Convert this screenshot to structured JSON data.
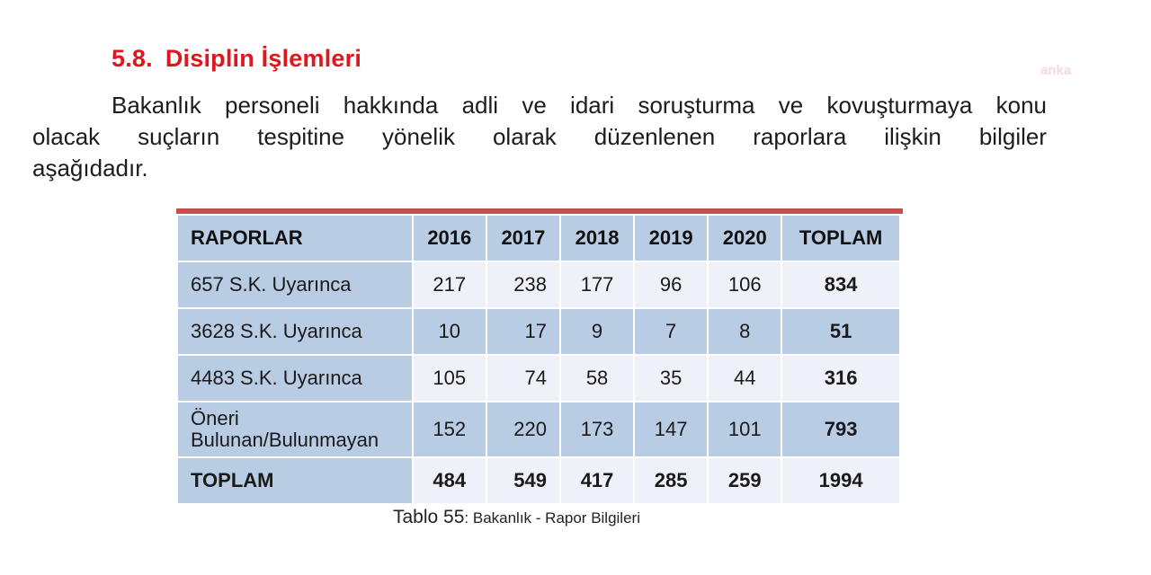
{
  "document": {
    "section_number": "5.8.",
    "section_title": "Disiplin İşlemleri",
    "watermark": "anka",
    "paragraph_lines": [
      "Bakanlık personeli hakkında adli ve idari soruşturma ve kovuşturmaya konu",
      "olacak suçların tespitine yönelik olarak düzenlenen raporlara ilişkin bilgiler",
      "aşağıdadır."
    ],
    "table": {
      "headers": [
        "RAPORLAR",
        "2016",
        "2017",
        "2018",
        "2019",
        "2020",
        "TOPLAM"
      ],
      "rows": [
        {
          "label": "657 S.K. Uyarınca",
          "values": [
            "217",
            "238",
            "177",
            "96",
            "106"
          ],
          "total": "834"
        },
        {
          "label": "3628 S.K. Uyarınca",
          "values": [
            "10",
            "17",
            "9",
            "7",
            "8"
          ],
          "total": "51"
        },
        {
          "label": "4483 S.K. Uyarınca",
          "values": [
            "105",
            "74",
            "58",
            "35",
            "44"
          ],
          "total": "316"
        },
        {
          "label_line1": "Öneri",
          "label_line2": "Bulunan/Bulunmayan",
          "values": [
            "152",
            "220",
            "173",
            "147",
            "101"
          ],
          "total": "793"
        },
        {
          "label": "TOPLAM",
          "values": [
            "484",
            "549",
            "417",
            "285",
            "259"
          ],
          "total": "1994"
        }
      ]
    },
    "caption": {
      "prefix": "Tablo 55",
      "text": ": Bakanlık - Rapor Bilgileri"
    }
  },
  "colors": {
    "heading": "#e0161e",
    "table_top_bar": "#c0504d",
    "table_dark": "#b8cce4",
    "table_light": "#eef2f8"
  }
}
